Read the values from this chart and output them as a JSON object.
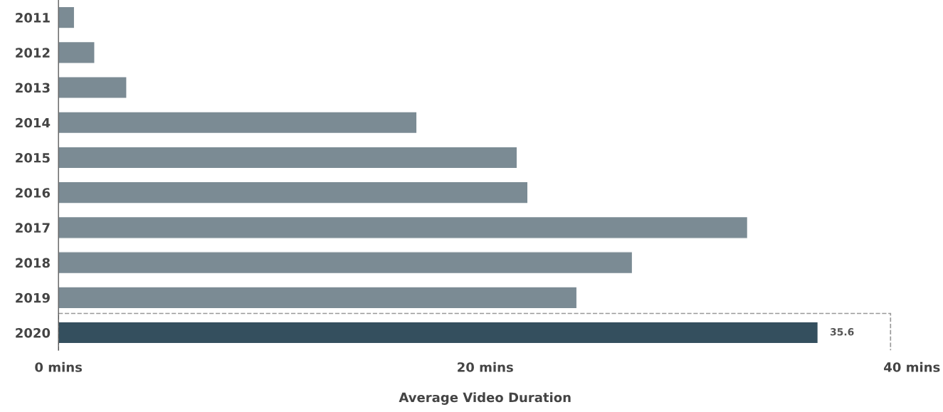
{
  "chart_data": {
    "type": "bar",
    "orientation": "horizontal",
    "xlabel": "Average Video Duration",
    "categories": [
      "2011",
      "2012",
      "2013",
      "2014",
      "2015",
      "2016",
      "2017",
      "2018",
      "2019",
      "2020"
    ],
    "values": [
      0.75,
      1.7,
      3.2,
      16.8,
      21.5,
      22.0,
      32.3,
      26.9,
      24.3,
      35.6
    ],
    "colors": [
      "#7b8b94",
      "#7b8b94",
      "#7b8b94",
      "#7b8b94",
      "#7b8b94",
      "#7b8b94",
      "#7b8b94",
      "#7b8b94",
      "#7b8b94",
      "#344f5e"
    ],
    "value_labels": [
      null,
      null,
      null,
      null,
      null,
      null,
      null,
      null,
      null,
      "35.6"
    ],
    "xlim": [
      0,
      40
    ],
    "xticks": [
      {
        "value": 0,
        "label": "0 mins"
      },
      {
        "value": 20,
        "label": "20 mins"
      },
      {
        "value": 40,
        "label": "40 mins"
      }
    ],
    "grid": false,
    "legend": false
  }
}
